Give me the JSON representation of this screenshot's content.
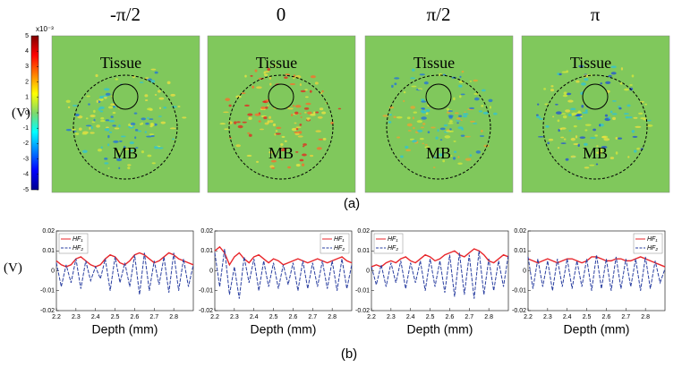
{
  "panels": [
    {
      "title": "-π/2",
      "tissue_label": "Tissue",
      "mb_label": "MB"
    },
    {
      "title": "0",
      "tissue_label": "Tissue",
      "mb_label": "MB"
    },
    {
      "title": "π/2",
      "tissue_label": "Tissue",
      "mb_label": "MB"
    },
    {
      "title": "π",
      "tissue_label": "Tissue",
      "mb_label": "MB"
    }
  ],
  "colorbar": {
    "unit_label": "(V)",
    "scale_label": "x10⁻³",
    "ylim": [
      -5,
      5
    ],
    "ticks": [
      -5,
      -4,
      -3,
      -2,
      -1,
      0,
      1,
      2,
      3,
      4,
      5
    ]
  },
  "panel_a_label": "(a)",
  "panel_b_label": "(b)",
  "line_y_label": "(V)",
  "chart_data": [
    {
      "type": "line",
      "x_label": "Depth (mm)",
      "xlim": [
        2.2,
        2.9
      ],
      "xticks": [
        2.2,
        2.3,
        2.4,
        2.5,
        2.6,
        2.7,
        2.8
      ],
      "ylim": [
        -0.02,
        0.02
      ],
      "yticks": [
        -0.02,
        -0.01,
        0,
        0.01,
        0.02
      ],
      "legend": "upper left",
      "x": [
        2.2,
        2.225,
        2.25,
        2.275,
        2.3,
        2.325,
        2.35,
        2.375,
        2.4,
        2.425,
        2.45,
        2.475,
        2.5,
        2.525,
        2.55,
        2.575,
        2.6,
        2.625,
        2.65,
        2.675,
        2.7,
        2.725,
        2.75,
        2.775,
        2.8,
        2.825,
        2.85,
        2.875,
        2.9
      ],
      "series": [
        {
          "name": "HF₁",
          "color": "#e8262b",
          "dash": false,
          "values": [
            0.005,
            0.003,
            0.002,
            0.003,
            0.006,
            0.007,
            0.005,
            0.003,
            0.002,
            0.003,
            0.006,
            0.008,
            0.007,
            0.004,
            0.003,
            0.005,
            0.008,
            0.009,
            0.008,
            0.006,
            0.004,
            0.005,
            0.007,
            0.009,
            0.008,
            0.006,
            0.005,
            0.004,
            0.003
          ]
        },
        {
          "name": "HF₂",
          "color": "#2a3fa0",
          "dash": true,
          "values": [
            0.004,
            -0.008,
            0.003,
            -0.006,
            0.006,
            -0.009,
            0.005,
            -0.005,
            0.002,
            -0.004,
            0.006,
            -0.01,
            0.007,
            -0.006,
            0.004,
            -0.008,
            0.008,
            -0.012,
            0.009,
            -0.01,
            0.005,
            -0.007,
            0.007,
            -0.011,
            0.009,
            -0.01,
            0.006,
            -0.008,
            0.003
          ]
        }
      ]
    },
    {
      "type": "line",
      "x_label": "Depth (mm)",
      "xlim": [
        2.2,
        2.9
      ],
      "xticks": [
        2.2,
        2.3,
        2.4,
        2.5,
        2.6,
        2.7,
        2.8
      ],
      "ylim": [
        -0.02,
        0.02
      ],
      "yticks": [
        -0.02,
        -0.01,
        0,
        0.01,
        0.02
      ],
      "legend": "upper right",
      "x": [
        2.2,
        2.225,
        2.25,
        2.275,
        2.3,
        2.325,
        2.35,
        2.375,
        2.4,
        2.425,
        2.45,
        2.475,
        2.5,
        2.525,
        2.55,
        2.575,
        2.6,
        2.625,
        2.65,
        2.675,
        2.7,
        2.725,
        2.75,
        2.775,
        2.8,
        2.825,
        2.85,
        2.875,
        2.9
      ],
      "series": [
        {
          "name": "HF₁",
          "color": "#e8262b",
          "dash": false,
          "values": [
            0.01,
            0.012,
            0.009,
            0.003,
            0.007,
            0.009,
            0.006,
            0.004,
            0.007,
            0.008,
            0.006,
            0.004,
            0.006,
            0.005,
            0.003,
            0.004,
            0.005,
            0.006,
            0.005,
            0.004,
            0.005,
            0.006,
            0.005,
            0.004,
            0.005,
            0.006,
            0.007,
            0.005,
            0.004
          ]
        },
        {
          "name": "HF₂",
          "color": "#2a3fa0",
          "dash": true,
          "values": [
            0.009,
            -0.008,
            0.011,
            -0.012,
            0.002,
            -0.014,
            0.007,
            -0.006,
            0.006,
            -0.01,
            0.005,
            -0.008,
            0.004,
            -0.009,
            0.003,
            -0.007,
            0.004,
            -0.01,
            0.005,
            -0.009,
            0.004,
            -0.008,
            0.005,
            -0.009,
            0.005,
            -0.01,
            0.006,
            -0.009,
            0.003
          ]
        }
      ]
    },
    {
      "type": "line",
      "x_label": "Depth (mm)",
      "xlim": [
        2.2,
        2.9
      ],
      "xticks": [
        2.2,
        2.3,
        2.4,
        2.5,
        2.6,
        2.7,
        2.8
      ],
      "ylim": [
        -0.02,
        0.02
      ],
      "yticks": [
        -0.02,
        -0.01,
        0,
        0.01,
        0.02
      ],
      "legend": "upper left",
      "x": [
        2.2,
        2.225,
        2.25,
        2.275,
        2.3,
        2.325,
        2.35,
        2.375,
        2.4,
        2.425,
        2.45,
        2.475,
        2.5,
        2.525,
        2.55,
        2.575,
        2.6,
        2.625,
        2.65,
        2.675,
        2.7,
        2.725,
        2.75,
        2.775,
        2.8,
        2.825,
        2.85,
        2.875,
        2.9
      ],
      "series": [
        {
          "name": "HF₁",
          "color": "#e8262b",
          "dash": false,
          "values": [
            0.002,
            0.003,
            0.002,
            0.004,
            0.005,
            0.004,
            0.006,
            0.007,
            0.005,
            0.004,
            0.006,
            0.008,
            0.007,
            0.005,
            0.006,
            0.008,
            0.009,
            0.01,
            0.008,
            0.007,
            0.009,
            0.011,
            0.01,
            0.008,
            0.005,
            0.004,
            0.006,
            0.008,
            0.007
          ]
        },
        {
          "name": "HF₂",
          "color": "#2a3fa0",
          "dash": true,
          "values": [
            0.002,
            -0.007,
            0.003,
            -0.008,
            0.004,
            -0.006,
            0.005,
            -0.009,
            0.004,
            -0.006,
            0.005,
            -0.01,
            0.006,
            -0.008,
            0.005,
            -0.011,
            0.008,
            -0.013,
            0.009,
            -0.012,
            0.008,
            -0.014,
            0.01,
            -0.012,
            0.006,
            -0.01,
            0.005,
            -0.008,
            0.008
          ]
        }
      ]
    },
    {
      "type": "line",
      "x_label": "Depth (mm)",
      "xlim": [
        2.2,
        2.9
      ],
      "xticks": [
        2.2,
        2.3,
        2.4,
        2.5,
        2.6,
        2.7,
        2.8
      ],
      "ylim": [
        -0.02,
        0.02
      ],
      "yticks": [
        -0.02,
        -0.01,
        0,
        0.01,
        0.02
      ],
      "legend": "upper right",
      "x": [
        2.2,
        2.225,
        2.25,
        2.275,
        2.3,
        2.325,
        2.35,
        2.375,
        2.4,
        2.425,
        2.45,
        2.475,
        2.5,
        2.525,
        2.55,
        2.575,
        2.6,
        2.625,
        2.65,
        2.675,
        2.7,
        2.725,
        2.75,
        2.775,
        2.8,
        2.825,
        2.85,
        2.875,
        2.9
      ],
      "series": [
        {
          "name": "HF₁",
          "color": "#e8262b",
          "dash": false,
          "values": [
            0.006,
            0.005,
            0.004,
            0.005,
            0.006,
            0.005,
            0.004,
            0.005,
            0.006,
            0.006,
            0.005,
            0.004,
            0.005,
            0.007,
            0.007,
            0.006,
            0.005,
            0.005,
            0.006,
            0.006,
            0.005,
            0.005,
            0.006,
            0.007,
            0.006,
            0.005,
            0.004,
            0.003,
            0.002
          ]
        },
        {
          "name": "HF₂",
          "color": "#2a3fa0",
          "dash": true,
          "values": [
            0.007,
            -0.009,
            0.006,
            -0.008,
            0.005,
            -0.01,
            0.006,
            -0.008,
            0.006,
            -0.009,
            0.005,
            -0.008,
            0.006,
            -0.01,
            0.008,
            -0.009,
            0.006,
            -0.01,
            0.007,
            -0.009,
            0.006,
            -0.008,
            0.006,
            -0.01,
            0.007,
            -0.009,
            0.005,
            -0.006,
            0.001
          ]
        }
      ]
    }
  ]
}
